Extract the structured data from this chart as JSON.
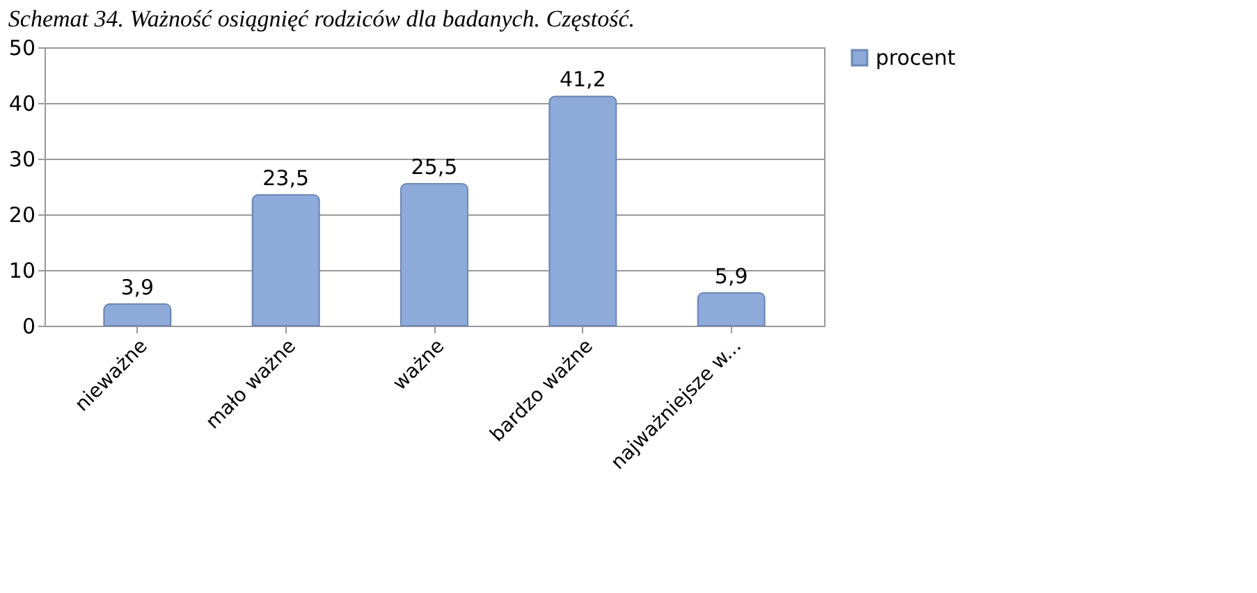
{
  "chart_data": {
    "type": "bar",
    "title": "Schemat 34. Ważność osiągnięć rodziców dla badanych. Częstość.",
    "categories": [
      "nieważne",
      "mało ważne",
      "ważne",
      "bardzo ważne",
      "najważniejsze w..."
    ],
    "series": [
      {
        "name": "procent",
        "color": "#8eaadb",
        "values": [
          3.9,
          23.5,
          25.5,
          41.2,
          5.9
        ],
        "value_labels": [
          "3,9",
          "23,5",
          "25,5",
          "41,2",
          "5,9"
        ]
      }
    ],
    "ylim": [
      0,
      50
    ],
    "yticks": [
      0,
      10,
      20,
      30,
      40,
      50
    ],
    "grid": "y",
    "legend": "right"
  }
}
